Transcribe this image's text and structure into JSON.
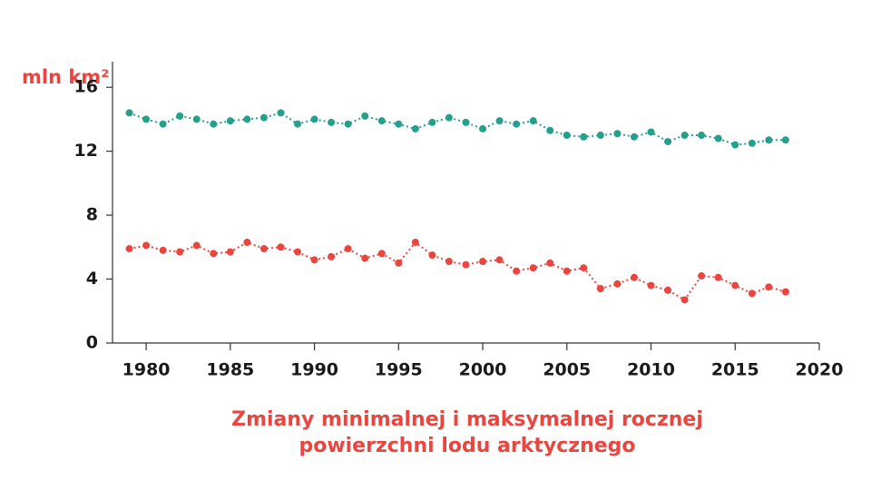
{
  "chart_data": {
    "type": "line",
    "title": [
      "Zmiany minimalnej i maksymalnej rocznej",
      "powierzchni lodu arktycznego"
    ],
    "y_label": "mln km²",
    "x": [
      1979,
      1980,
      1981,
      1982,
      1983,
      1984,
      1985,
      1986,
      1987,
      1988,
      1989,
      1990,
      1991,
      1992,
      1993,
      1994,
      1995,
      1996,
      1997,
      1998,
      1999,
      2000,
      2001,
      2002,
      2003,
      2004,
      2005,
      2006,
      2007,
      2008,
      2009,
      2010,
      2011,
      2012,
      2013,
      2014,
      2015,
      2016,
      2017,
      2018
    ],
    "series": [
      {
        "color": "#26a08c",
        "values": [
          14.4,
          14.0,
          13.7,
          14.2,
          14.0,
          13.7,
          13.9,
          14.0,
          14.1,
          14.4,
          13.7,
          14.0,
          13.8,
          13.7,
          14.2,
          13.9,
          13.7,
          13.4,
          13.8,
          14.1,
          13.8,
          13.4,
          13.9,
          13.7,
          13.9,
          13.3,
          13.0,
          12.9,
          13.0,
          13.1,
          12.9,
          13.2,
          12.6,
          13.0,
          13.0,
          12.8,
          12.4,
          12.5,
          12.7,
          12.7
        ]
      },
      {
        "color": "#e8463f",
        "values": [
          5.9,
          6.1,
          5.8,
          5.7,
          6.1,
          5.6,
          5.7,
          6.3,
          5.9,
          6.0,
          5.7,
          5.2,
          5.4,
          5.9,
          5.3,
          5.6,
          5.0,
          6.3,
          5.5,
          5.1,
          4.9,
          5.1,
          5.2,
          4.5,
          4.7,
          5.0,
          4.5,
          4.7,
          3.4,
          3.7,
          4.1,
          3.6,
          3.3,
          2.7,
          4.2,
          4.1,
          3.6,
          3.1,
          3.5,
          3.2
        ]
      }
    ],
    "xlim": [
      1978,
      2020
    ],
    "xticks": [
      1980,
      1985,
      1990,
      1995,
      2000,
      2005,
      2010,
      2015,
      2020
    ],
    "ylim": [
      0,
      17.6
    ],
    "yticks": [
      0,
      4,
      8,
      12,
      16
    ]
  }
}
